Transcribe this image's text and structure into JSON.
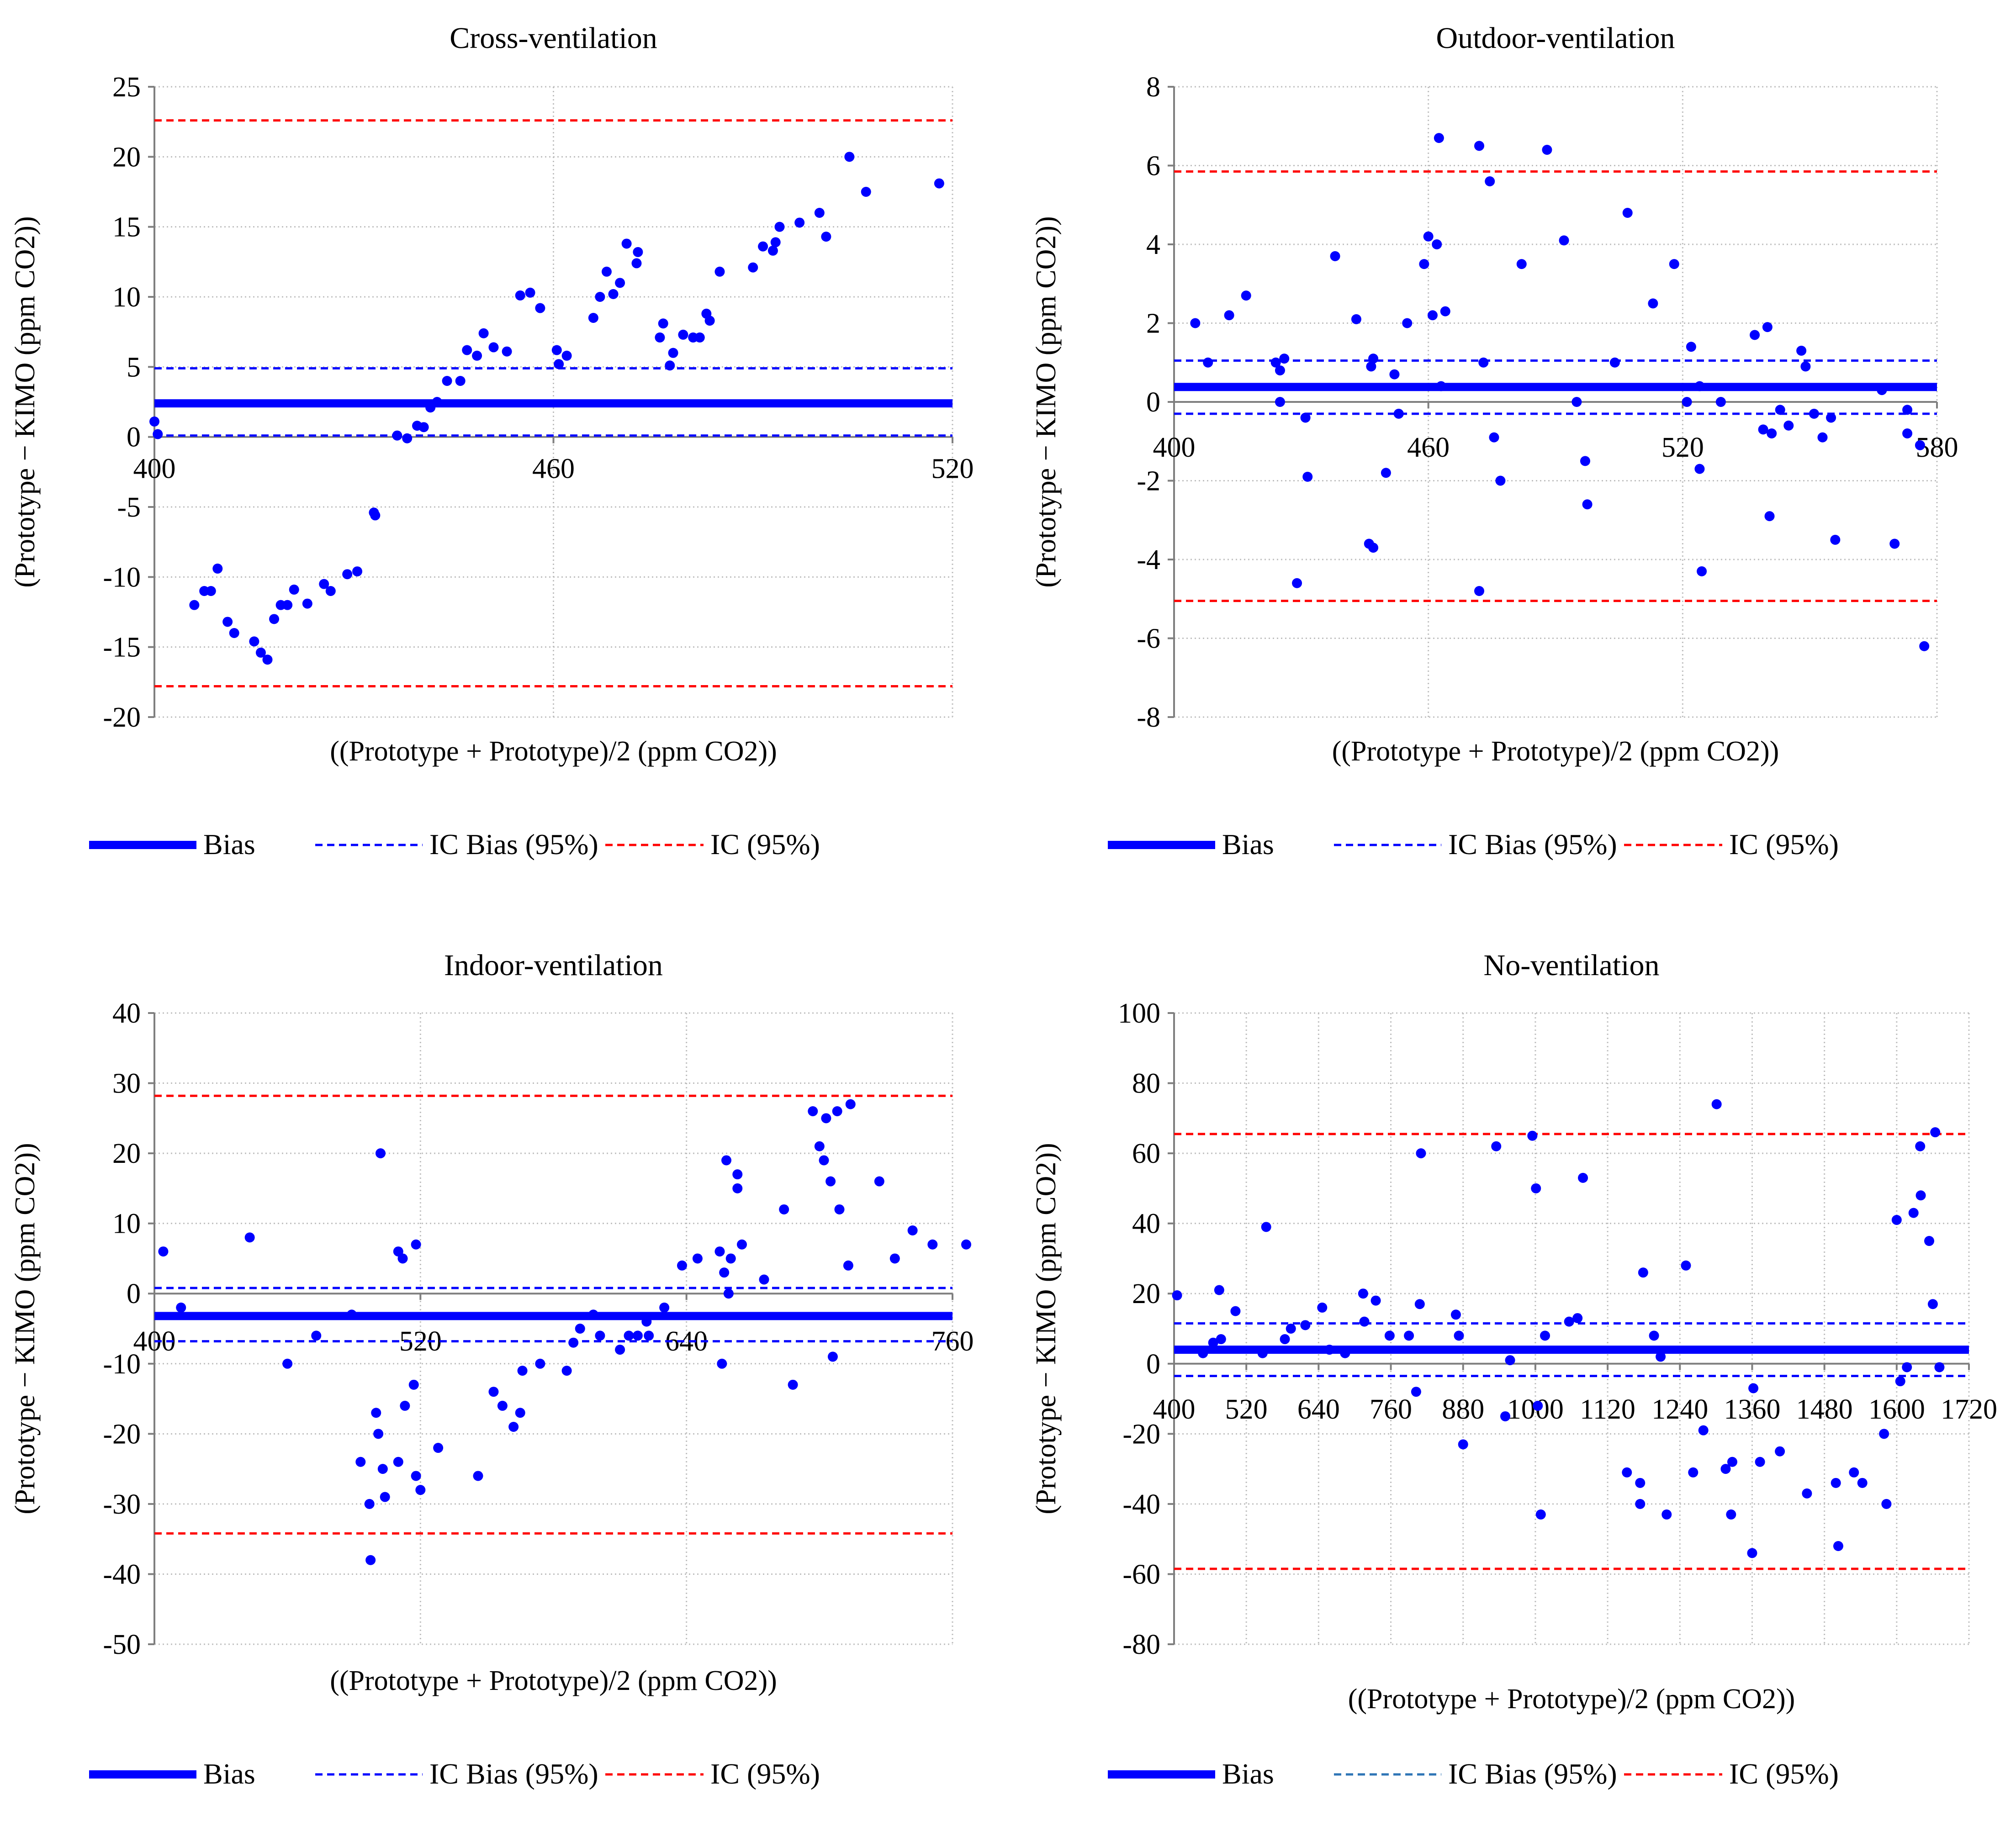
{
  "colors": {
    "bias": "#0000ff",
    "ic_bias": "#0000ff",
    "ic": "#ff0000",
    "grid": "#bfbfbf",
    "axis": "#7f7f7f"
  },
  "legend": {
    "bias": "Bias",
    "ic_bias": "IC Bias (95%)",
    "ic": "IC (95%)"
  },
  "chart_data": [
    {
      "type": "scatter",
      "title": "Cross-ventilation",
      "xlabel": "((Prototype + Prototype)/2 (ppm CO2))",
      "ylabel": "(Prototype − KIMO (ppm CO2))",
      "xlim": [
        400,
        520
      ],
      "ylim": [
        -20,
        25
      ],
      "xticks": [
        "400",
        "460",
        "520"
      ],
      "xtick_values": [
        400,
        460,
        520
      ],
      "yticks": [
        "25",
        "20",
        "15",
        "10",
        "5",
        "0",
        "-5",
        "-10",
        "-15",
        "-20"
      ],
      "ytick_values": [
        25,
        20,
        15,
        10,
        5,
        0,
        -5,
        -10,
        -15,
        -20
      ],
      "bias": 2.4,
      "ic_bias": [
        0.1,
        4.9
      ],
      "ic": [
        -17.8,
        22.6
      ],
      "points": [
        [
          400,
          1.1
        ],
        [
          400.5,
          0.2
        ],
        [
          406,
          -12
        ],
        [
          407.5,
          -11
        ],
        [
          408.5,
          -11
        ],
        [
          409.5,
          -9.4
        ],
        [
          411,
          -13.2
        ],
        [
          412,
          -14
        ],
        [
          415,
          -14.6
        ],
        [
          416,
          -15.4
        ],
        [
          417,
          -15.9
        ],
        [
          418,
          -13
        ],
        [
          419,
          -12
        ],
        [
          420,
          -12
        ],
        [
          421,
          -10.9
        ],
        [
          423,
          -11.9
        ],
        [
          425.5,
          -10.5
        ],
        [
          426.5,
          -11
        ],
        [
          429,
          -9.8
        ],
        [
          430.5,
          -9.6
        ],
        [
          433,
          -5.4
        ],
        [
          433.2,
          -5.6
        ],
        [
          436.5,
          0.1
        ],
        [
          438,
          -0.1
        ],
        [
          439.5,
          0.8
        ],
        [
          440.5,
          0.7
        ],
        [
          441.5,
          2.1
        ],
        [
          442.5,
          2.5
        ],
        [
          444,
          4
        ],
        [
          446,
          4
        ],
        [
          447,
          6.2
        ],
        [
          448.5,
          5.8
        ],
        [
          449.5,
          7.4
        ],
        [
          451,
          6.4
        ],
        [
          453,
          6.1
        ],
        [
          455,
          10.1
        ],
        [
          456.5,
          10.3
        ],
        [
          458,
          9.2
        ],
        [
          460.5,
          6.2
        ],
        [
          460.8,
          5.2
        ],
        [
          462,
          5.8
        ],
        [
          466,
          8.5
        ],
        [
          467,
          10
        ],
        [
          468,
          11.8
        ],
        [
          469,
          10.2
        ],
        [
          470,
          11
        ],
        [
          471,
          13.8
        ],
        [
          472.5,
          12.4
        ],
        [
          472.7,
          13.2
        ],
        [
          476,
          7.1
        ],
        [
          476.5,
          8.1
        ],
        [
          477.5,
          5.1
        ],
        [
          478,
          6
        ],
        [
          479.5,
          7.3
        ],
        [
          481,
          7.1
        ],
        [
          482,
          7.1
        ],
        [
          483,
          8.8
        ],
        [
          483.5,
          8.3
        ],
        [
          485,
          11.8
        ],
        [
          490,
          12.1
        ],
        [
          491.5,
          13.6
        ],
        [
          493,
          13.3
        ],
        [
          493.4,
          13.9
        ],
        [
          494,
          15
        ],
        [
          497,
          15.3
        ],
        [
          500,
          16
        ],
        [
          501,
          14.3
        ],
        [
          504.5,
          20
        ],
        [
          507,
          17.5
        ],
        [
          518,
          18.1
        ]
      ]
    },
    {
      "type": "scatter",
      "title": "Outdoor-ventilation",
      "xlabel": "((Prototype + Prototype)/2 (ppm CO2))",
      "ylabel": "(Prototype − KIMO (ppm CO2))",
      "xlim": [
        400,
        580
      ],
      "ylim": [
        -8,
        8
      ],
      "xticks": [
        "400",
        "460",
        "520",
        "580"
      ],
      "xtick_values": [
        400,
        460,
        520,
        580
      ],
      "yticks": [
        "8",
        "6",
        "4",
        "2",
        "0",
        "-2",
        "-4",
        "-6",
        "-8"
      ],
      "ytick_values": [
        8,
        6,
        4,
        2,
        0,
        -2,
        -4,
        -6,
        -8
      ],
      "bias": 0.38,
      "ic_bias": [
        -0.3,
        1.05
      ],
      "ic": [
        -5.05,
        5.85
      ],
      "points": [
        [
          405,
          2
        ],
        [
          408,
          1
        ],
        [
          413,
          2.2
        ],
        [
          417,
          2.7
        ],
        [
          424,
          1
        ],
        [
          425,
          0.8
        ],
        [
          425,
          0
        ],
        [
          426,
          1.1
        ],
        [
          429,
          -4.6
        ],
        [
          431,
          -0.4
        ],
        [
          431.5,
          -1.9
        ],
        [
          438,
          3.7
        ],
        [
          443,
          2.1
        ],
        [
          446,
          -3.6
        ],
        [
          447,
          -3.7
        ],
        [
          446.5,
          0.9
        ],
        [
          447,
          1.1
        ],
        [
          450,
          -1.8
        ],
        [
          452,
          0.7
        ],
        [
          453,
          -0.3
        ],
        [
          455,
          2
        ],
        [
          459,
          3.5
        ],
        [
          460,
          4.2
        ],
        [
          461,
          2.2
        ],
        [
          462,
          4
        ],
        [
          462.5,
          6.7
        ],
        [
          463,
          0.4
        ],
        [
          464,
          2.3
        ],
        [
          472,
          6.5
        ],
        [
          472,
          -4.8
        ],
        [
          473,
          1
        ],
        [
          474.5,
          5.6
        ],
        [
          475.5,
          -0.9
        ],
        [
          477,
          -2
        ],
        [
          482,
          3.5
        ],
        [
          488,
          6.4
        ],
        [
          492,
          4.1
        ],
        [
          495,
          0
        ],
        [
          497,
          -1.5
        ],
        [
          497.5,
          -2.6
        ],
        [
          504,
          1
        ],
        [
          507,
          4.8
        ],
        [
          513,
          2.5
        ],
        [
          518,
          3.5
        ],
        [
          521,
          0
        ],
        [
          522,
          1.4
        ],
        [
          524,
          0.4
        ],
        [
          524,
          -1.7
        ],
        [
          524.5,
          -4.3
        ],
        [
          529,
          0
        ],
        [
          537,
          1.7
        ],
        [
          539,
          -0.7
        ],
        [
          540,
          1.9
        ],
        [
          540.5,
          -2.9
        ],
        [
          541,
          -0.8
        ],
        [
          543,
          -0.2
        ],
        [
          545,
          -0.6
        ],
        [
          548,
          1.3
        ],
        [
          549,
          0.9
        ],
        [
          551,
          -0.3
        ],
        [
          553,
          -0.9
        ],
        [
          555,
          -0.4
        ],
        [
          556,
          -3.5
        ],
        [
          567,
          0.3
        ],
        [
          570,
          -3.6
        ],
        [
          573,
          -0.2
        ],
        [
          573,
          -0.8
        ],
        [
          576,
          -1.1
        ],
        [
          577,
          -6.2
        ]
      ]
    },
    {
      "type": "scatter",
      "title": "Indoor-ventilation",
      "xlabel": "((Prototype + Prototype)/2 (ppm CO2))",
      "ylabel": "(Prototype − KIMO (ppm CO2))",
      "xlim": [
        400,
        760
      ],
      "ylim": [
        -50,
        40
      ],
      "xticks": [
        "400",
        "520",
        "640",
        "760"
      ],
      "xtick_values": [
        400,
        520,
        640,
        760
      ],
      "yticks": [
        "40",
        "30",
        "20",
        "10",
        "0",
        "-10",
        "-20",
        "-30",
        "-40",
        "-50"
      ],
      "ytick_values": [
        40,
        30,
        20,
        10,
        0,
        -10,
        -20,
        -30,
        -40,
        -50
      ],
      "bias": -3.2,
      "ic_bias": [
        0.8,
        -6.8
      ],
      "ic": [
        28.2,
        -34.2
      ],
      "points": [
        [
          404,
          6
        ],
        [
          412,
          -2
        ],
        [
          443,
          8
        ],
        [
          460,
          -10
        ],
        [
          473,
          -6
        ],
        [
          489,
          -3
        ],
        [
          493,
          -24
        ],
        [
          497,
          -30
        ],
        [
          497.5,
          -38
        ],
        [
          500,
          -17
        ],
        [
          501,
          -20
        ],
        [
          503,
          -25
        ],
        [
          504,
          -29
        ],
        [
          510,
          -24
        ],
        [
          513,
          -16
        ],
        [
          517,
          -13
        ],
        [
          518,
          -26
        ],
        [
          520,
          -28
        ],
        [
          502,
          20
        ],
        [
          510,
          6
        ],
        [
          512,
          5
        ],
        [
          518,
          7
        ],
        [
          528,
          -22
        ],
        [
          546,
          -26
        ],
        [
          553,
          -14
        ],
        [
          557,
          -16
        ],
        [
          562,
          -19
        ],
        [
          565,
          -17
        ],
        [
          566,
          -11
        ],
        [
          574,
          -10
        ],
        [
          586,
          -11
        ],
        [
          589,
          -7
        ],
        [
          592,
          -5
        ],
        [
          598,
          -3
        ],
        [
          601,
          -6
        ],
        [
          610,
          -8
        ],
        [
          614,
          -6
        ],
        [
          618,
          -6
        ],
        [
          622,
          -4
        ],
        [
          623,
          -6
        ],
        [
          630,
          -2
        ],
        [
          638,
          4
        ],
        [
          645,
          5
        ],
        [
          655,
          6
        ],
        [
          656,
          -10
        ],
        [
          657,
          3
        ],
        [
          658,
          19
        ],
        [
          659,
          0
        ],
        [
          660,
          5
        ],
        [
          663,
          17
        ],
        [
          663,
          15
        ],
        [
          665,
          7
        ],
        [
          675,
          2
        ],
        [
          684,
          12
        ],
        [
          688,
          -13
        ],
        [
          697,
          26
        ],
        [
          700,
          21
        ],
        [
          702,
          19
        ],
        [
          703,
          25
        ],
        [
          705,
          16
        ],
        [
          706,
          -9
        ],
        [
          708,
          26
        ],
        [
          709,
          12
        ],
        [
          714,
          27
        ],
        [
          713,
          4
        ],
        [
          727,
          16
        ],
        [
          734,
          5
        ],
        [
          742,
          9
        ],
        [
          751,
          7
        ],
        [
          772,
          7
        ]
      ]
    },
    {
      "type": "scatter",
      "title": "No-ventilation",
      "xlabel": "((Prototype + Prototype)/2 (ppm CO2))",
      "ylabel": "(Prototype − KIMO (ppm CO2))",
      "xlim": [
        400,
        1720
      ],
      "ylim": [
        -80,
        100
      ],
      "xticks": [
        "400",
        "520",
        "640",
        "760",
        "880",
        "1000",
        "1120",
        "1240",
        "1360",
        "1480",
        "1600",
        "1720"
      ],
      "xtick_values": [
        400,
        520,
        640,
        760,
        880,
        1000,
        1120,
        1240,
        1360,
        1480,
        1600,
        1720
      ],
      "yticks": [
        "100",
        "80",
        "60",
        "40",
        "20",
        "0",
        "-20",
        "-40",
        "-60",
        "-80"
      ],
      "ytick_values": [
        100,
        80,
        60,
        40,
        20,
        0,
        -20,
        -40,
        -60,
        -80
      ],
      "bias": 4,
      "ic_bias": [
        11.5,
        -3.5
      ],
      "ic": [
        65.5,
        -58.5
      ],
      "points": [
        [
          405,
          19.5
        ],
        [
          448,
          3
        ],
        [
          465,
          6
        ],
        [
          475,
          21
        ],
        [
          478,
          7
        ],
        [
          502,
          15
        ],
        [
          547,
          3
        ],
        [
          553,
          39
        ],
        [
          584,
          7
        ],
        [
          594,
          10
        ],
        [
          618,
          11
        ],
        [
          646,
          16
        ],
        [
          658,
          4
        ],
        [
          684,
          3
        ],
        [
          714,
          20
        ],
        [
          716,
          12
        ],
        [
          735,
          18
        ],
        [
          758,
          8
        ],
        [
          790,
          8
        ],
        [
          802,
          -8
        ],
        [
          808,
          17
        ],
        [
          810,
          60
        ],
        [
          868,
          14
        ],
        [
          873,
          8
        ],
        [
          880,
          -23
        ],
        [
          935,
          62
        ],
        [
          950,
          -15
        ],
        [
          958,
          1
        ],
        [
          995,
          65
        ],
        [
          1001,
          50
        ],
        [
          1004,
          -12
        ],
        [
          1009,
          -43
        ],
        [
          1016,
          8
        ],
        [
          1056,
          12
        ],
        [
          1070,
          13
        ],
        [
          1079,
          53
        ],
        [
          1152,
          -31
        ],
        [
          1174,
          -34
        ],
        [
          1179,
          26
        ],
        [
          1174,
          -40
        ],
        [
          1197,
          8
        ],
        [
          1208,
          2
        ],
        [
          1218,
          -43
        ],
        [
          1250,
          28
        ],
        [
          1262,
          -31
        ],
        [
          1279,
          -19
        ],
        [
          1301,
          74
        ],
        [
          1316,
          -30
        ],
        [
          1327,
          -28
        ],
        [
          1325,
          -43
        ],
        [
          1360,
          -54
        ],
        [
          1362,
          -7
        ],
        [
          1373,
          -28
        ],
        [
          1406,
          -25
        ],
        [
          1451,
          -37
        ],
        [
          1499,
          -34
        ],
        [
          1503,
          -52
        ],
        [
          1529,
          -31
        ],
        [
          1543,
          -34
        ],
        [
          1579,
          -20
        ],
        [
          1583,
          -40
        ],
        [
          1600,
          41
        ],
        [
          1606,
          -5
        ],
        [
          1617,
          -1
        ],
        [
          1628,
          43
        ],
        [
          1639,
          62
        ],
        [
          1640,
          48
        ],
        [
          1654,
          35
        ],
        [
          1660,
          17
        ],
        [
          1664,
          66
        ],
        [
          1671,
          -1
        ]
      ]
    }
  ]
}
